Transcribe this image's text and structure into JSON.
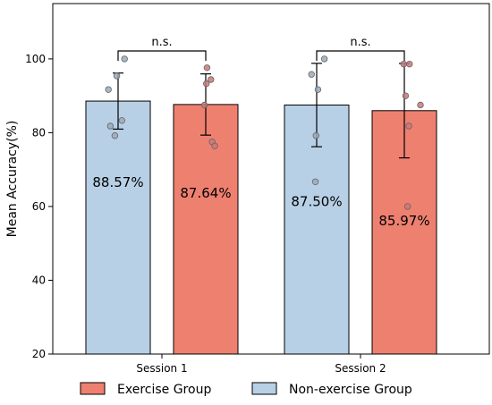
{
  "chart_data": {
    "type": "bar",
    "title": "",
    "xlabel": "",
    "ylabel": "Mean Accuracy(%)",
    "ylim": [
      20,
      115
    ],
    "yticks": [
      20,
      40,
      60,
      80,
      100
    ],
    "categories": [
      "Session 1",
      "Session 2"
    ],
    "legend_position": "bottom",
    "series": [
      {
        "name": "Non-exercise Group",
        "color": "#b8d0e6",
        "values": [
          88.57,
          87.5
        ],
        "labels": [
          "88.57%",
          "87.50%"
        ],
        "error": [
          7.6,
          11.3
        ],
        "points": [
          [
            100.0,
            95.4,
            91.7,
            83.3,
            81.8,
            79.2
          ],
          [
            100.0,
            95.8,
            91.7,
            79.2,
            66.7
          ]
        ]
      },
      {
        "name": "Exercise Group",
        "color": "#ee8070",
        "values": [
          87.64,
          85.97
        ],
        "labels": [
          "87.64%",
          "85.97%"
        ],
        "error": [
          8.3,
          12.8
        ],
        "points": [
          [
            97.6,
            94.4,
            93.3,
            87.5,
            77.5,
            76.4
          ],
          [
            98.6,
            98.6,
            90.0,
            87.5,
            81.8,
            60.0
          ]
        ]
      }
    ],
    "legend_order": [
      "Exercise Group",
      "Non-exercise Group"
    ],
    "significance": [
      {
        "category": "Session 1",
        "label": "n.s."
      },
      {
        "category": "Session 2",
        "label": "n.s."
      }
    ]
  }
}
